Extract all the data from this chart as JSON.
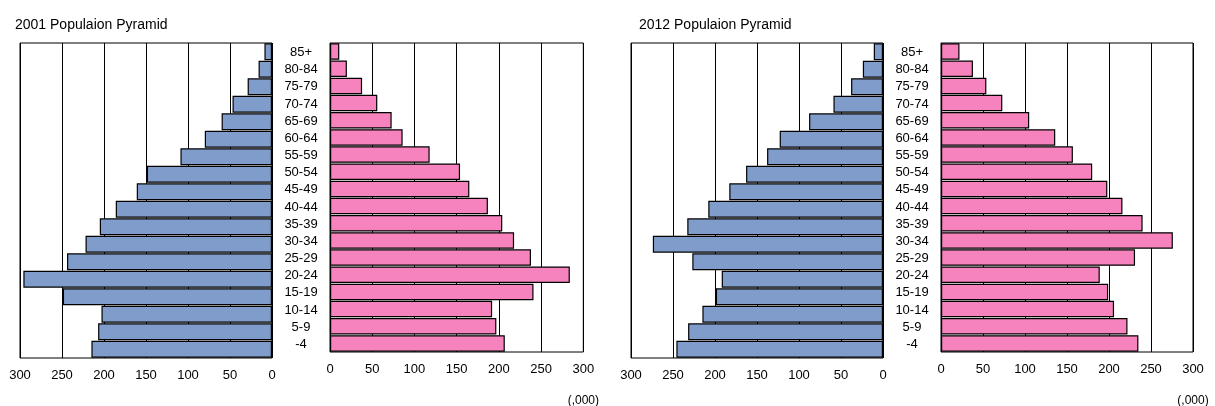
{
  "chart_data": [
    {
      "type": "bar",
      "title": "2001 Populaion Pyramid",
      "orientation": "horizontal",
      "categories": [
        null,
        null,
        null,
        null,
        null,
        null,
        null,
        null,
        null,
        null,
        null,
        null,
        null,
        null,
        null,
        null,
        null,
        null
      ],
      "series": [
        {
          "color": "#7f9cca",
          "values": [
            9,
            16,
            29,
            47,
            60,
            80,
            109,
            149,
            161,
            186,
            205,
            222,
            244,
            296,
            249,
            203,
            207,
            215
          ]
        }
      ],
      "xlim": [
        300,
        0
      ],
      "xticks": [
        0,
        50,
        100,
        150,
        200,
        250,
        300
      ],
      "grid": "x",
      "tick_labels": "x"
    },
    {
      "type": "bar",
      "xlabel": "(,000)",
      "orientation": "horizontal",
      "categories": [
        "85+",
        "80-84",
        "75-79",
        "70-74",
        "65-69",
        "60-64",
        "55-59",
        "50-54",
        "45-49",
        "40-44",
        "35-39",
        "30-34",
        "25-29",
        "20-24",
        "15-19",
        "10-14",
        "5-9",
        "-4"
      ],
      "series": [
        {
          "color": "#f783be",
          "values": [
            11,
            20,
            38,
            56,
            73,
            86,
            118,
            154,
            165,
            187,
            204,
            218,
            238,
            284,
            241,
            192,
            197,
            207
          ]
        }
      ],
      "xlim": [
        0,
        300
      ],
      "xticks": [
        0,
        50,
        100,
        150,
        200,
        250,
        300
      ],
      "grid": "x"
    },
    {
      "type": "bar",
      "title": "2012 Populaion Pyramid",
      "orientation": "horizontal",
      "categories": [
        null,
        null,
        null,
        null,
        null,
        null,
        null,
        null,
        null,
        null,
        null,
        null,
        null,
        null,
        null,
        null,
        null,
        null
      ],
      "series": [
        {
          "color": "#7f9cca",
          "values": [
            11,
            24,
            38,
            59,
            88,
            123,
            138,
            163,
            183,
            208,
            233,
            274,
            227,
            192,
            199,
            215,
            232,
            246
          ]
        }
      ],
      "xlim": [
        300,
        0
      ],
      "xticks": [
        0,
        50,
        100,
        150,
        200,
        250,
        300
      ],
      "grid": "x",
      "tick_labels": "x"
    },
    {
      "type": "bar",
      "xlabel": "(,000)",
      "orientation": "horizontal",
      "categories": [
        "85+",
        "80-84",
        "75-79",
        "70-74",
        "65-69",
        "60-64",
        "55-59",
        "50-54",
        "45-49",
        "40-44",
        "35-39",
        "30-34",
        "25-29",
        "20-24",
        "15-19",
        "10-14",
        "5-9",
        "-4"
      ],
      "series": [
        {
          "color": "#f783be",
          "values": [
            22,
            38,
            54,
            73,
            105,
            136,
            157,
            180,
            198,
            216,
            240,
            276,
            231,
            189,
            199,
            206,
            222,
            235
          ]
        }
      ],
      "xlim": [
        0,
        300
      ],
      "xticks": [
        0,
        50,
        100,
        150,
        200,
        250,
        300
      ],
      "grid": "x"
    }
  ]
}
